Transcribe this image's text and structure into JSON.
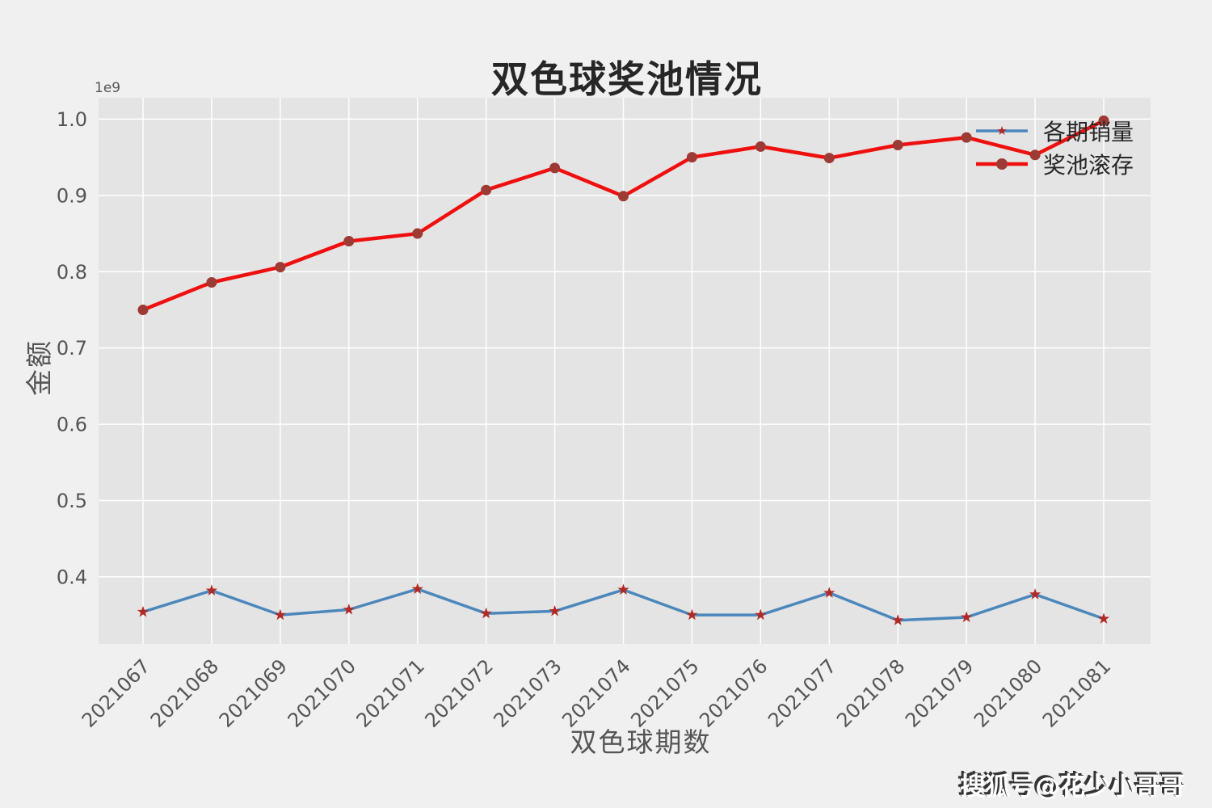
{
  "watermark": {
    "text": "搜狐号@花少小哥哥"
  },
  "chart_data": {
    "type": "line",
    "title": "双色球奖池情况",
    "xlabel": "双色球期数",
    "ylabel": "金额",
    "offset_text": "1e9",
    "grid": true,
    "legend_position": "upper right",
    "categories": [
      "2021067",
      "2021068",
      "2021069",
      "2021070",
      "2021071",
      "2021072",
      "2021073",
      "2021074",
      "2021075",
      "2021076",
      "2021077",
      "2021078",
      "2021079",
      "2021080",
      "2021081"
    ],
    "series": [
      {
        "name": "各期销量",
        "type": "line",
        "color": "#4c87bb",
        "marker": "star",
        "marker_color": "#b22a25",
        "line_width": 3.5,
        "values": [
          354000000,
          382000000,
          350000000,
          357000000,
          384000000,
          352000000,
          355000000,
          383000000,
          350000000,
          350000000,
          379000000,
          343000000,
          347000000,
          377000000,
          345000000
        ]
      },
      {
        "name": "奖池滚存",
        "type": "line",
        "color": "#f00f0f",
        "marker": "circle",
        "marker_color": "#9d3a33",
        "line_width": 4.5,
        "values": [
          750000000,
          786000000,
          806000000,
          840000000,
          850000000,
          907000000,
          936000000,
          899000000,
          950000000,
          964000000,
          949000000,
          966000000,
          976000000,
          953000000,
          998000000
        ]
      }
    ],
    "ylim": [
      312000000,
      1028000000
    ],
    "yticks": [
      400000000,
      500000000,
      600000000,
      700000000,
      800000000,
      900000000,
      1000000000
    ],
    "ytick_labels": [
      "0.4",
      "0.5",
      "0.6",
      "0.7",
      "0.8",
      "0.9",
      "1.0"
    ],
    "styles": {
      "figure_bg": "#f0f0f0",
      "axes_bg": "#e4e4e4",
      "grid_color": "#ffffff",
      "tick_label_color": "#555555",
      "axis_label_color": "#555555",
      "title_color": "#262626",
      "legend_text_color": "#262626"
    }
  }
}
